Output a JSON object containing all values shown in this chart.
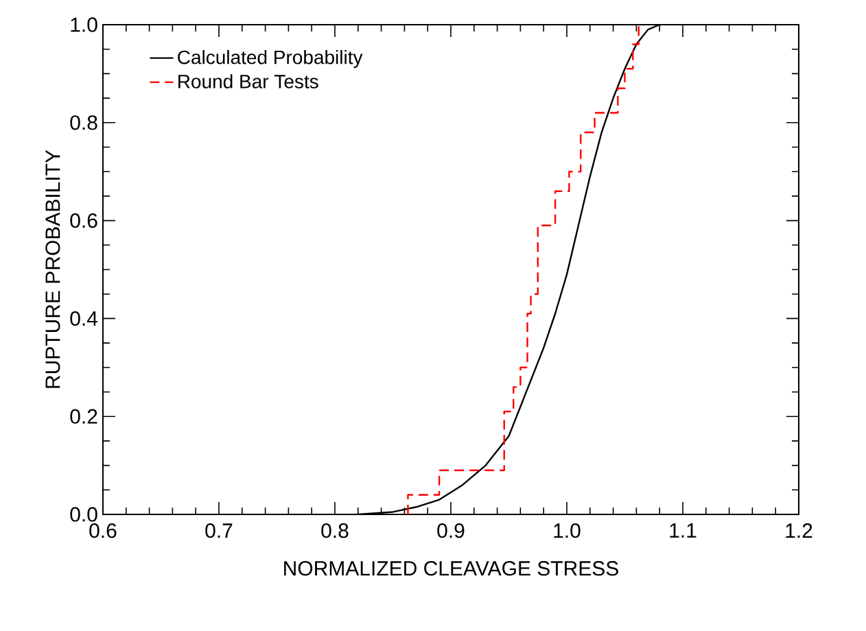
{
  "chart_data": {
    "type": "line",
    "xlabel": "NORMALIZED CLEAVAGE STRESS",
    "ylabel": "RUPTURE PROBABILITY",
    "xlim": [
      0.6,
      1.2
    ],
    "ylim": [
      0.0,
      1.0
    ],
    "xticks": [
      {
        "value": 0.6,
        "label": "0.6"
      },
      {
        "value": 0.7,
        "label": "0.7"
      },
      {
        "value": 0.8,
        "label": "0.8"
      },
      {
        "value": 0.9,
        "label": "0.9"
      },
      {
        "value": 1.0,
        "label": "1.0"
      },
      {
        "value": 1.1,
        "label": "1.1"
      },
      {
        "value": 1.2,
        "label": "1.2"
      }
    ],
    "yticks": [
      {
        "value": 0.0,
        "label": "0.0"
      },
      {
        "value": 0.2,
        "label": "0.2"
      },
      {
        "value": 0.4,
        "label": "0.4"
      },
      {
        "value": 0.6,
        "label": "0.6"
      },
      {
        "value": 0.8,
        "label": "0.8"
      },
      {
        "value": 1.0,
        "label": "1.0"
      }
    ],
    "grid": false,
    "legend": "top left",
    "marker": "none",
    "series": [
      {
        "name": "Calculated Probability",
        "color": "#000000",
        "line_style": "solid",
        "x": [
          0.82,
          0.85,
          0.87,
          0.89,
          0.91,
          0.93,
          0.95,
          0.96,
          0.97,
          0.98,
          0.99,
          1.0,
          1.01,
          1.02,
          1.03,
          1.04,
          1.05,
          1.06,
          1.07,
          1.08
        ],
        "values": [
          0.0,
          0.005,
          0.015,
          0.03,
          0.06,
          0.1,
          0.16,
          0.22,
          0.28,
          0.34,
          0.41,
          0.49,
          0.59,
          0.69,
          0.78,
          0.85,
          0.91,
          0.96,
          0.99,
          1.0
        ]
      },
      {
        "name": "Round Bar Tests",
        "type": "step",
        "color": "#ff0000",
        "line_style": "dashed",
        "x": [
          0.863,
          0.863,
          0.89,
          0.946,
          0.954,
          0.96,
          0.966,
          0.969,
          0.975,
          0.99,
          1.002,
          1.012,
          1.024,
          1.044,
          1.05,
          1.057,
          1.062
        ],
        "values": [
          0.0,
          0.04,
          0.09,
          0.21,
          0.26,
          0.3,
          0.41,
          0.45,
          0.59,
          0.66,
          0.7,
          0.78,
          0.82,
          0.87,
          0.91,
          0.96,
          1.0
        ]
      }
    ]
  }
}
